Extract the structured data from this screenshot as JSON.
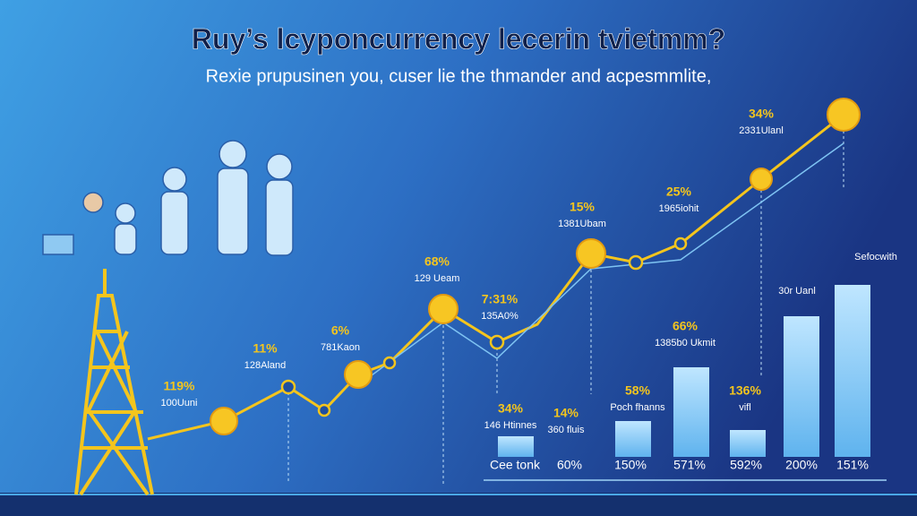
{
  "header": {
    "title": "Ruy’s lcyponcurrency lecerin tvietmm?",
    "subtitle": "Rexie prupusinen you, cuser lie the thmander and acpesmmlite,"
  },
  "annotations": [
    {
      "value": "119%",
      "caption": "100Uuni"
    },
    {
      "value": "11%",
      "caption": "128Aland"
    },
    {
      "value": "6%",
      "caption": "781Kaon"
    },
    {
      "value": "68%",
      "caption": "129 Ueam"
    },
    {
      "value": "7:31%",
      "caption": "135A0%"
    },
    {
      "value": "15%",
      "caption": "1381Ubam"
    },
    {
      "value": "25%",
      "caption": "1965iohit"
    },
    {
      "value": "34%",
      "caption": "2331Ulanl"
    },
    {
      "value": "66%",
      "caption": "1385b0 Ukmit"
    },
    {
      "value": "58%",
      "caption": "Poch fhanns"
    },
    {
      "value": "34%",
      "caption": "146 Htinnes"
    },
    {
      "value": "14%",
      "caption": "360 fluis"
    },
    {
      "value": "136%",
      "caption": "vifl"
    }
  ],
  "side_labels": [
    "Sefocwith",
    "30r Uanl"
  ],
  "bottom_labels": [
    "Cee tonk",
    "60%",
    "150%",
    "571%",
    "592%",
    "200%",
    "151%"
  ]
}
